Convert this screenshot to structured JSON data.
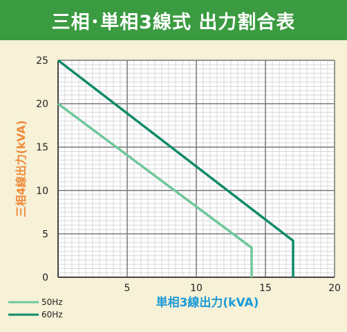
{
  "header": {
    "title": "三相･単相3線式 出力割合表"
  },
  "chart_data": {
    "type": "line",
    "title": "三相･単相3線式 出力割合表",
    "xlabel": "単相3線出力(kVA)",
    "ylabel": "三相4線出力(kVA)",
    "xlim": [
      0,
      20
    ],
    "ylim": [
      0,
      25
    ],
    "xticks": [
      "5",
      "10",
      "15",
      "20"
    ],
    "yticks": [
      "0",
      "5",
      "10",
      "15",
      "20",
      "25"
    ],
    "grid": true,
    "legend_position": "bottom-left",
    "series": [
      {
        "name": "50Hz",
        "color": "#6fc79a",
        "x": [
          0,
          14,
          14
        ],
        "y": [
          20,
          3.4,
          0
        ]
      },
      {
        "name": "60Hz",
        "color": "#0f8a68",
        "x": [
          0,
          17,
          17
        ],
        "y": [
          25,
          4.2,
          0
        ]
      }
    ]
  }
}
